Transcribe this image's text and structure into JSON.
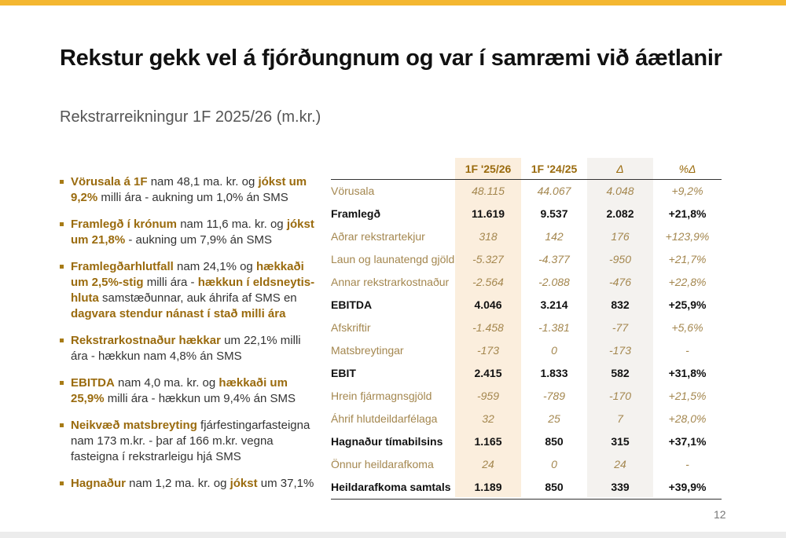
{
  "slide": {
    "title": "Rekstur gekk vel á fjórðungnum og var í samræmi við áætlanir",
    "subtitle": "Rekstrarreikningur 1F 2025/26 (m.kr.)",
    "page_number": "12",
    "accent_color": "#f4b731",
    "highlight_color": "#9a6b0e"
  },
  "bullets": [
    {
      "parts": [
        {
          "t": "Vörusala á 1F",
          "hl": true
        },
        {
          "t": " nam 48,1 ma. kr. og ",
          "hl": false
        },
        {
          "t": "jókst um 9,2%",
          "hl": true
        },
        {
          "t": " milli ára - aukning um 1,0% án SMS",
          "hl": false
        }
      ]
    },
    {
      "parts": [
        {
          "t": "Framlegð í krónum",
          "hl": true
        },
        {
          "t": " nam 11,6 ma. kr. og ",
          "hl": false
        },
        {
          "t": "jókst um 21,8%",
          "hl": true
        },
        {
          "t": " - aukning um 7,9% án SMS",
          "hl": false
        }
      ]
    },
    {
      "parts": [
        {
          "t": "Framlegðarhlutfall",
          "hl": true
        },
        {
          "t": " nam 24,1% og ",
          "hl": false
        },
        {
          "t": "hækkaði um 2,5%-stig",
          "hl": true
        },
        {
          "t": " milli ára - ",
          "hl": false
        },
        {
          "t": "hækkun í eldsneytis-hluta",
          "hl": true
        },
        {
          "t": " samstæðunnar, auk áhrifa af SMS en ",
          "hl": false
        },
        {
          "t": "dagvara stendur nánast í stað milli ára",
          "hl": true
        }
      ]
    },
    {
      "parts": [
        {
          "t": "Rekstrarkostnaður hækkar",
          "hl": true
        },
        {
          "t": " um 22,1% milli ára - hækkun nam 4,8% án SMS",
          "hl": false
        }
      ]
    },
    {
      "parts": [
        {
          "t": "EBITDA",
          "hl": true
        },
        {
          "t": " nam 4,0 ma. kr. og ",
          "hl": false
        },
        {
          "t": "hækkaði um 25,9%",
          "hl": true
        },
        {
          "t": " milli ára - hækkun um 9,4% án SMS",
          "hl": false
        }
      ]
    },
    {
      "parts": [
        {
          "t": "Neikvæð matsbreyting",
          "hl": true
        },
        {
          "t": " fjárfestingarfasteigna nam 173 m.kr. - þar af 166 m.kr. vegna fasteigna í rekstrarleigu hjá SMS",
          "hl": false
        }
      ]
    },
    {
      "parts": [
        {
          "t": "Hagnaður",
          "hl": true
        },
        {
          "t": " nam 1,2 ma. kr. og ",
          "hl": false
        },
        {
          "t": "jókst",
          "hl": true
        },
        {
          "t": " um 37,1%",
          "hl": false
        }
      ]
    }
  ],
  "table": {
    "headers": [
      "",
      "1F '25/26",
      "1F '24/25",
      "Δ",
      "%Δ"
    ],
    "rows": [
      {
        "label": "Vörusala",
        "v": [
          "48.115",
          "44.067",
          "4.048",
          "+9,2%"
        ],
        "bold": false
      },
      {
        "label": "Framlegð",
        "v": [
          "11.619",
          "9.537",
          "2.082",
          "+21,8%"
        ],
        "bold": true
      },
      {
        "label": "Aðrar rekstrartekjur",
        "v": [
          "318",
          "142",
          "176",
          "+123,9%"
        ],
        "bold": false
      },
      {
        "label": "Laun og launatengd gjöld",
        "v": [
          "-5.327",
          "-4.377",
          "-950",
          "+21,7%"
        ],
        "bold": false
      },
      {
        "label": "Annar rekstrarkostnaður",
        "v": [
          "-2.564",
          "-2.088",
          "-476",
          "+22,8%"
        ],
        "bold": false
      },
      {
        "label": "EBITDA",
        "v": [
          "4.046",
          "3.214",
          "832",
          "+25,9%"
        ],
        "bold": true
      },
      {
        "label": "Afskriftir",
        "v": [
          "-1.458",
          "-1.381",
          "-77",
          "+5,6%"
        ],
        "bold": false
      },
      {
        "label": "Matsbreytingar",
        "v": [
          "-173",
          "0",
          "-173",
          "-"
        ],
        "bold": false
      },
      {
        "label": "EBIT",
        "v": [
          "2.415",
          "1.833",
          "582",
          "+31,8%"
        ],
        "bold": true
      },
      {
        "label": "Hrein fjármagnsgjöld",
        "v": [
          "-959",
          "-789",
          "-170",
          "+21,5%"
        ],
        "bold": false
      },
      {
        "label": "Áhrif hlutdeildarfélaga",
        "v": [
          "32",
          "25",
          "7",
          "+28,0%"
        ],
        "bold": false
      },
      {
        "label": "Hagnaður tímabilsins",
        "v": [
          "1.165",
          "850",
          "315",
          "+37,1%"
        ],
        "bold": true
      },
      {
        "label": "Önnur heildarafkoma",
        "v": [
          "24",
          "0",
          "24",
          "-"
        ],
        "bold": false
      },
      {
        "label": "Heildarafkoma samtals",
        "v": [
          "1.189",
          "850",
          "339",
          "+39,9%"
        ],
        "bold": true
      }
    ]
  }
}
